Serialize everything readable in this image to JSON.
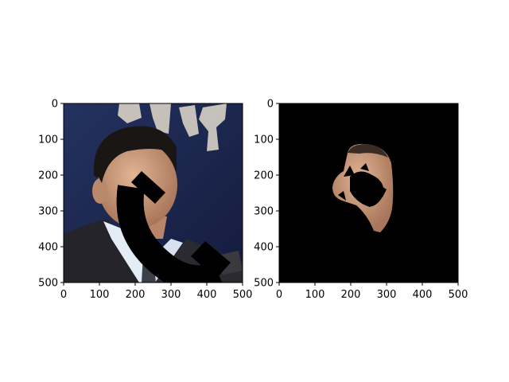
{
  "chart_data": [
    {
      "type": "image",
      "description_id": "photo-with-occlusion",
      "xlim": [
        0,
        500
      ],
      "ylim": [
        500,
        0
      ],
      "xticks": [
        "0",
        "100",
        "200",
        "300",
        "400",
        "500"
      ],
      "yticks": [
        "0",
        "100",
        "200",
        "300",
        "400",
        "500"
      ],
      "colors": {
        "background": "#1e2a55",
        "frame": "#000000",
        "face": "#c99a7a",
        "suit": "#1e1e22",
        "shirt": "#dfe8f4"
      }
    },
    {
      "type": "image",
      "description_id": "segmented-face-mask",
      "xlim": [
        0,
        500
      ],
      "ylim": [
        500,
        0
      ],
      "xticks": [
        "0",
        "100",
        "200",
        "300",
        "400",
        "500"
      ],
      "yticks": [
        "0",
        "100",
        "200",
        "300",
        "400",
        "500"
      ],
      "colors": {
        "background": "#000000",
        "face": "#c99a7a"
      }
    }
  ]
}
